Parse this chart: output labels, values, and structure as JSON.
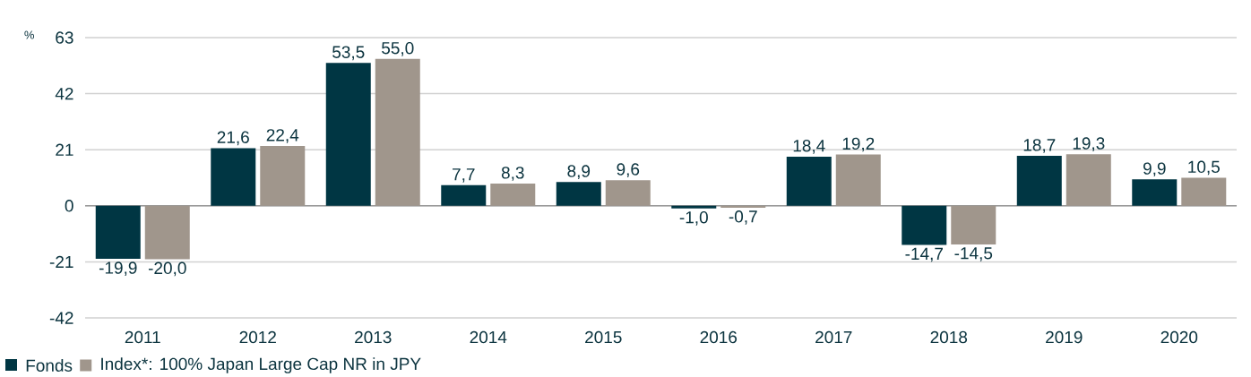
{
  "chart_data": {
    "type": "bar",
    "ylabel": "%",
    "categories": [
      "2011",
      "2012",
      "2013",
      "2014",
      "2015",
      "2016",
      "2017",
      "2018",
      "2019",
      "2020"
    ],
    "series": [
      {
        "name": "Fonds",
        "color": "#003643",
        "values": [
          -19.9,
          21.6,
          53.5,
          7.7,
          8.9,
          -1.0,
          18.4,
          -14.7,
          18.7,
          9.9
        ],
        "value_labels": [
          "-19,9",
          "21,6",
          "53,5",
          "7,7",
          "8,9",
          "-1,0",
          "18,4",
          "-14,7",
          "18,7",
          "9,9"
        ]
      },
      {
        "name": "Index*: 100% Japan Large Cap NR in JPY",
        "color": "#a0968c",
        "values": [
          -20.0,
          22.4,
          55.0,
          8.3,
          9.6,
          -0.7,
          19.2,
          -14.5,
          19.3,
          10.5
        ],
        "value_labels": [
          "-20,0",
          "22,4",
          "55,0",
          "8,3",
          "9,6",
          "-0,7",
          "19,2",
          "-14,5",
          "19,3",
          "10,5"
        ]
      }
    ],
    "ylim": [
      -42,
      63
    ],
    "yticks": [
      -42,
      -21,
      0,
      21,
      42,
      63
    ],
    "grid": "y",
    "legend": "bottom left"
  }
}
